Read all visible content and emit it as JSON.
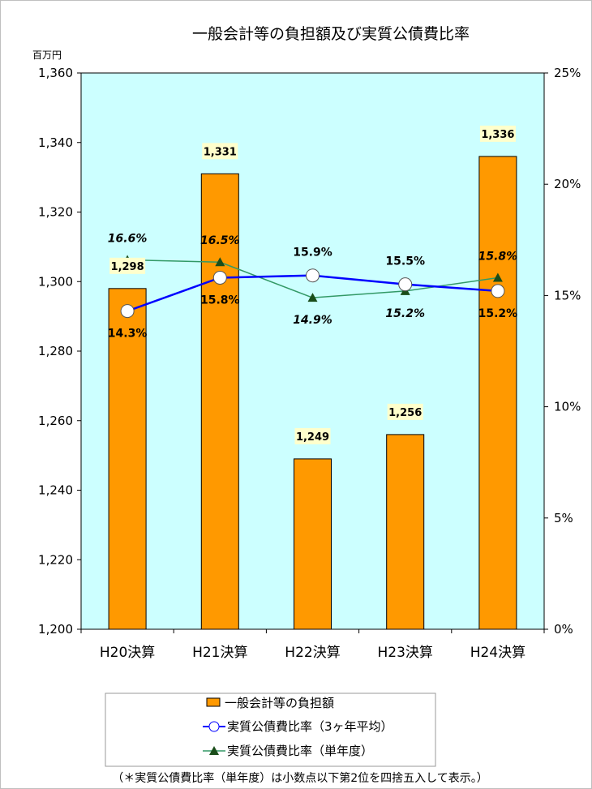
{
  "chart_data": {
    "type": "bar",
    "title": "一般会計等の負担額及び実質公債費比率",
    "y_unit_label": "百万円",
    "categories": [
      "H20決算",
      "H21決算",
      "H22決算",
      "H23決算",
      "H24決算"
    ],
    "ylim": [
      1200,
      1360
    ],
    "yticks": [
      1200,
      1220,
      1240,
      1260,
      1280,
      1300,
      1320,
      1340,
      1360
    ],
    "yticklabels": [
      "1,200",
      "1,220",
      "1,240",
      "1,260",
      "1,280",
      "1,300",
      "1,320",
      "1,340",
      "1,360"
    ],
    "y2lim": [
      0,
      25
    ],
    "y2ticks": [
      0,
      5,
      10,
      15,
      20,
      25
    ],
    "y2ticklabels": [
      "0%",
      "5%",
      "10%",
      "15%",
      "20%",
      "25%"
    ],
    "plot_background": "#ccffff",
    "series": [
      {
        "name": "一般会計等の負担額",
        "kind": "bar",
        "axis": "left",
        "color": "#ff9900",
        "values": [
          1298,
          1331,
          1249,
          1256,
          1336
        ],
        "labels": [
          "1,298",
          "1,331",
          "1,249",
          "1,256",
          "1,336"
        ]
      },
      {
        "name": "実質公債費比率（3ヶ年平均）",
        "kind": "line",
        "axis": "right",
        "color": "#0000ff",
        "marker": "circle",
        "values": [
          14.3,
          15.8,
          15.9,
          15.5,
          15.2
        ],
        "labels": [
          "14.3%",
          "15.8%",
          "15.9%",
          "15.5%",
          "15.2%"
        ]
      },
      {
        "name": "実質公債費比率（単年度）",
        "kind": "line",
        "axis": "right",
        "color": "#339966",
        "marker": "triangle",
        "values": [
          16.6,
          16.5,
          14.9,
          15.2,
          15.8
        ],
        "labels": [
          "16.6%",
          "16.5%",
          "14.9%",
          "15.2%",
          "15.8%"
        ]
      }
    ],
    "legend": {
      "position": "bottom",
      "entries": [
        "一般会計等の負担額",
        "実質公債費比率（3ヶ年平均）",
        "実質公債費比率（単年度）"
      ]
    },
    "note": "（＊実質公債費比率（単年度）は小数点以下第2位を四捨五入して表示。）"
  }
}
